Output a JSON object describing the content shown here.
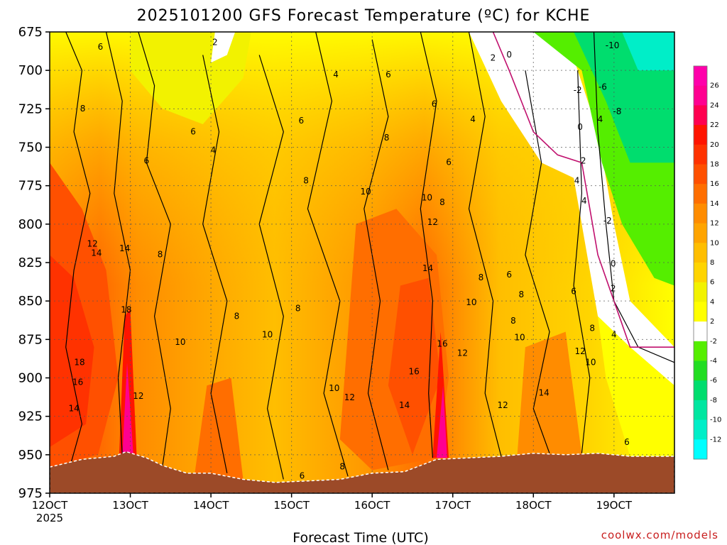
{
  "title": "2025101200 GFS Forecast Temperature (ºC) for KCHE",
  "credit": "coolwx.com/models",
  "xlabel": "Forecast Time (UTC)",
  "chart_data": {
    "type": "heatmap",
    "title": "2025101200 GFS Forecast Temperature (ºC) for KCHE",
    "xlabel": "Forecast Time (UTC)",
    "ylabel": "",
    "x_ticks": [
      "12OCT",
      "13OCT",
      "14OCT",
      "15OCT",
      "16OCT",
      "17OCT",
      "18OCT",
      "19OCT"
    ],
    "x_tick_sub": "2025",
    "x_range_days": [
      12,
      19.75
    ],
    "y_ticks": [
      675,
      700,
      725,
      750,
      775,
      800,
      825,
      850,
      875,
      900,
      925,
      950,
      975
    ],
    "y_range_hpa": [
      675,
      975
    ],
    "grid": true,
    "colorbar": {
      "ticks": [
        26,
        24,
        22,
        20,
        18,
        16,
        14,
        12,
        10,
        8,
        6,
        4,
        2,
        -2,
        -4,
        -6,
        -8,
        -10,
        -12
      ],
      "bands": [
        {
          "from": -14,
          "to": -12,
          "color": "#00ffff"
        },
        {
          "from": -12,
          "to": -10,
          "color": "#00eec8"
        },
        {
          "from": -10,
          "to": -8,
          "color": "#00e6a0"
        },
        {
          "from": -8,
          "to": -6,
          "color": "#00dd6e"
        },
        {
          "from": -6,
          "to": -4,
          "color": "#22dd22"
        },
        {
          "from": -4,
          "to": -2,
          "color": "#55ee00"
        },
        {
          "from": -2,
          "to": 2,
          "color": "#ffffff"
        },
        {
          "from": 2,
          "to": 4,
          "color": "#ffff00"
        },
        {
          "from": 4,
          "to": 6,
          "color": "#f2f200"
        },
        {
          "from": 6,
          "to": 8,
          "color": "#ffd400"
        },
        {
          "from": 8,
          "to": 10,
          "color": "#ffbe00"
        },
        {
          "from": 10,
          "to": 12,
          "color": "#ffa400"
        },
        {
          "from": 12,
          "to": 14,
          "color": "#ff8c00"
        },
        {
          "from": 14,
          "to": 16,
          "color": "#ff6e00"
        },
        {
          "from": 16,
          "to": 18,
          "color": "#ff5000"
        },
        {
          "from": 18,
          "to": 20,
          "color": "#ff3200"
        },
        {
          "from": 20,
          "to": 22,
          "color": "#ff1400"
        },
        {
          "from": 22,
          "to": 24,
          "color": "#ff0050"
        },
        {
          "from": 24,
          "to": 26,
          "color": "#ff0090"
        },
        {
          "from": 26,
          "to": 28,
          "color": "#ff00aa"
        }
      ]
    },
    "surface_pressure_hpa": [
      {
        "day": 12.0,
        "p": 958
      },
      {
        "day": 12.4,
        "p": 953
      },
      {
        "day": 12.8,
        "p": 951
      },
      {
        "day": 12.95,
        "p": 948
      },
      {
        "day": 13.2,
        "p": 952
      },
      {
        "day": 13.4,
        "p": 957
      },
      {
        "day": 13.7,
        "p": 962
      },
      {
        "day": 14.0,
        "p": 962
      },
      {
        "day": 14.4,
        "p": 966
      },
      {
        "day": 14.8,
        "p": 968
      },
      {
        "day": 15.2,
        "p": 967
      },
      {
        "day": 15.6,
        "p": 966
      },
      {
        "day": 16.0,
        "p": 962
      },
      {
        "day": 16.4,
        "p": 961
      },
      {
        "day": 16.8,
        "p": 953
      },
      {
        "day": 17.2,
        "p": 952
      },
      {
        "day": 17.6,
        "p": 951
      },
      {
        "day": 18.0,
        "p": 949
      },
      {
        "day": 18.4,
        "p": 950
      },
      {
        "day": 18.8,
        "p": 949
      },
      {
        "day": 19.2,
        "p": 951
      },
      {
        "day": 19.75,
        "p": 951
      }
    ],
    "contour_labels": [
      {
        "day": 12.63,
        "p": 685,
        "t": "6"
      },
      {
        "day": 12.41,
        "p": 725,
        "t": "8"
      },
      {
        "day": 14.05,
        "p": 682,
        "t": "2"
      },
      {
        "day": 15.55,
        "p": 703,
        "t": "4"
      },
      {
        "day": 13.78,
        "p": 740,
        "t": "6"
      },
      {
        "day": 14.03,
        "p": 752,
        "t": "4"
      },
      {
        "day": 13.2,
        "p": 759,
        "t": "6"
      },
      {
        "day": 15.12,
        "p": 733,
        "t": "6"
      },
      {
        "day": 16.2,
        "p": 703,
        "t": "6"
      },
      {
        "day": 16.18,
        "p": 744,
        "t": "8"
      },
      {
        "day": 16.77,
        "p": 722,
        "t": "6"
      },
      {
        "day": 16.95,
        "p": 760,
        "t": "6"
      },
      {
        "day": 17.25,
        "p": 732,
        "t": "4"
      },
      {
        "day": 17.5,
        "p": 692,
        "t": "2"
      },
      {
        "day": 17.7,
        "p": 690,
        "t": "0"
      },
      {
        "day": 18.54,
        "p": 772,
        "t": "4"
      },
      {
        "day": 18.55,
        "p": 713,
        "t": "-2"
      },
      {
        "day": 18.58,
        "p": 737,
        "t": "0"
      },
      {
        "day": 18.62,
        "p": 759,
        "t": "2"
      },
      {
        "day": 18.63,
        "p": 785,
        "t": "4"
      },
      {
        "day": 18.83,
        "p": 732,
        "t": "4"
      },
      {
        "day": 15.18,
        "p": 772,
        "t": "8"
      },
      {
        "day": 15.92,
        "p": 779,
        "t": "10"
      },
      {
        "day": 16.68,
        "p": 783,
        "t": "10"
      },
      {
        "day": 16.87,
        "p": 786,
        "t": "8"
      },
      {
        "day": 16.75,
        "p": 799,
        "t": "12"
      },
      {
        "day": 12.53,
        "p": 813,
        "t": "12"
      },
      {
        "day": 12.58,
        "p": 819,
        "t": "14"
      },
      {
        "day": 12.93,
        "p": 816,
        "t": "14"
      },
      {
        "day": 13.37,
        "p": 820,
        "t": "8"
      },
      {
        "day": 16.69,
        "p": 829,
        "t": "14"
      },
      {
        "day": 17.35,
        "p": 835,
        "t": "8"
      },
      {
        "day": 17.23,
        "p": 851,
        "t": "10"
      },
      {
        "day": 17.85,
        "p": 846,
        "t": "8"
      },
      {
        "day": 17.7,
        "p": 833,
        "t": "6"
      },
      {
        "day": 18.5,
        "p": 844,
        "t": "6"
      },
      {
        "day": 18.99,
        "p": 842,
        "t": "2"
      },
      {
        "day": 18.99,
        "p": 826,
        "t": "0"
      },
      {
        "day": 18.92,
        "p": 798,
        "t": "-2"
      },
      {
        "day": 18.86,
        "p": 711,
        "t": "-6"
      },
      {
        "day": 19.04,
        "p": 727,
        "t": "-8"
      },
      {
        "day": 18.98,
        "p": 684,
        "t": "-10"
      },
      {
        "day": 15.08,
        "p": 855,
        "t": "8"
      },
      {
        "day": 14.32,
        "p": 860,
        "t": "8"
      },
      {
        "day": 13.62,
        "p": 877,
        "t": "10"
      },
      {
        "day": 14.7,
        "p": 872,
        "t": "10"
      },
      {
        "day": 12.37,
        "p": 890,
        "t": "18"
      },
      {
        "day": 12.35,
        "p": 903,
        "t": "16"
      },
      {
        "day": 12.95,
        "p": 856,
        "t": "18"
      },
      {
        "day": 13.1,
        "p": 912,
        "t": "12"
      },
      {
        "day": 12.3,
        "p": 920,
        "t": "14"
      },
      {
        "day": 15.53,
        "p": 907,
        "t": "10"
      },
      {
        "day": 15.72,
        "p": 913,
        "t": "12"
      },
      {
        "day": 16.4,
        "p": 918,
        "t": "14"
      },
      {
        "day": 16.52,
        "p": 896,
        "t": "16"
      },
      {
        "day": 16.87,
        "p": 878,
        "t": "16"
      },
      {
        "day": 17.12,
        "p": 884,
        "t": "12"
      },
      {
        "day": 17.75,
        "p": 863,
        "t": "8"
      },
      {
        "day": 17.83,
        "p": 874,
        "t": "10"
      },
      {
        "day": 17.62,
        "p": 918,
        "t": "12"
      },
      {
        "day": 18.13,
        "p": 910,
        "t": "14"
      },
      {
        "day": 18.58,
        "p": 883,
        "t": "12"
      },
      {
        "day": 18.71,
        "p": 890,
        "t": "10"
      },
      {
        "day": 18.73,
        "p": 868,
        "t": "8"
      },
      {
        "day": 19.0,
        "p": 872,
        "t": "4"
      },
      {
        "day": 19.16,
        "p": 942,
        "t": "6"
      },
      {
        "day": 15.13,
        "p": 964,
        "t": "6"
      },
      {
        "day": 15.63,
        "p": 958,
        "t": "8"
      }
    ]
  }
}
